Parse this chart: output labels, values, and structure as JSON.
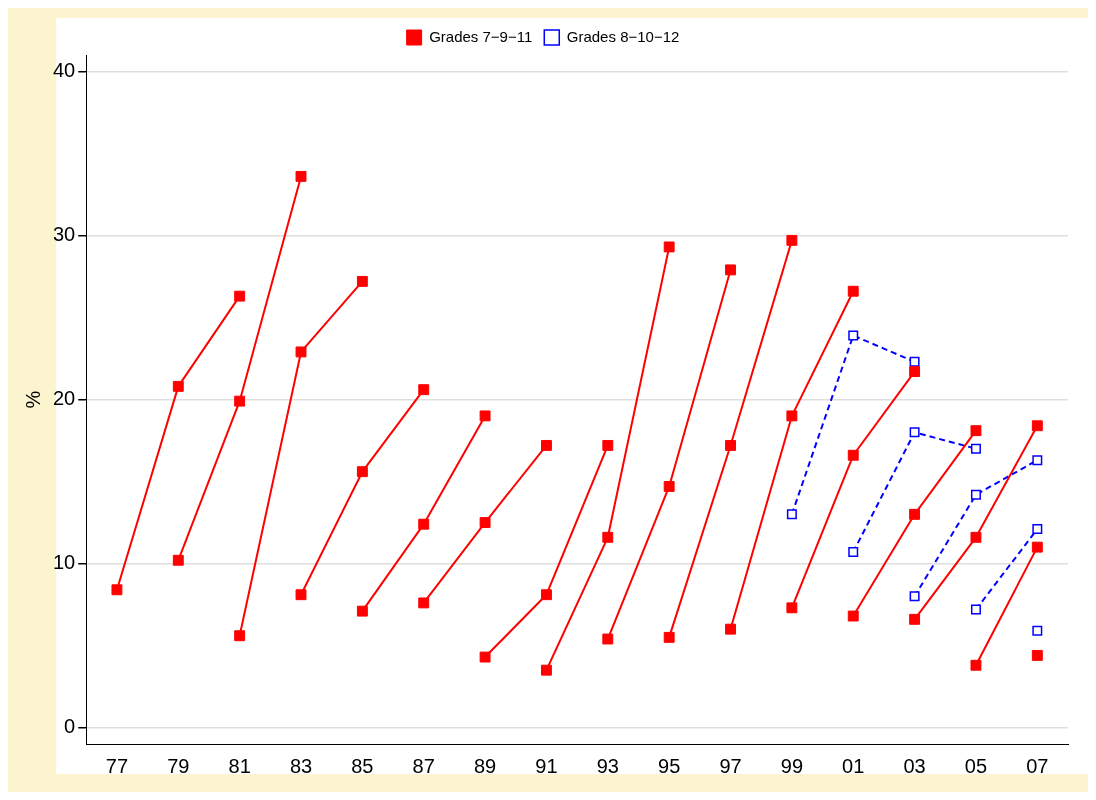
{
  "chart_data": {
    "type": "line",
    "ylabel": "%",
    "categories": [
      "77",
      "79",
      "81",
      "83",
      "85",
      "87",
      "89",
      "91",
      "93",
      "95",
      "97",
      "99",
      "01",
      "03",
      "05",
      "07"
    ],
    "ylim": [
      -1,
      41
    ],
    "yticks": [
      0,
      10,
      20,
      30,
      40
    ],
    "grid": "y",
    "legend": "top",
    "marker": "square",
    "series": [
      {
        "name": "Grades 7−9−11",
        "color": "#ff0000",
        "line_style": "solid",
        "values": [
          8.4,
          20.8,
          26.3,
          null,
          null,
          null,
          null,
          null,
          null,
          null,
          null,
          null,
          null,
          null,
          null,
          null
        ]
      },
      {
        "color": "#ff0000",
        "line_style": "solid",
        "values": [
          null,
          10.2,
          19.9,
          33.6,
          null,
          null,
          null,
          null,
          null,
          null,
          null,
          null,
          null,
          null,
          null,
          null
        ]
      },
      {
        "color": "#ff0000",
        "line_style": "solid",
        "values": [
          null,
          null,
          5.6,
          22.9,
          27.2,
          null,
          null,
          null,
          null,
          null,
          null,
          null,
          null,
          null,
          null,
          null
        ]
      },
      {
        "color": "#ff0000",
        "line_style": "solid",
        "values": [
          null,
          null,
          null,
          8.1,
          15.6,
          20.6,
          null,
          null,
          null,
          null,
          null,
          null,
          null,
          null,
          null,
          null
        ]
      },
      {
        "color": "#ff0000",
        "line_style": "solid",
        "values": [
          null,
          null,
          null,
          null,
          7.1,
          12.4,
          19.0,
          null,
          null,
          null,
          null,
          null,
          null,
          null,
          null,
          null
        ]
      },
      {
        "color": "#ff0000",
        "line_style": "solid",
        "values": [
          null,
          null,
          null,
          null,
          null,
          7.6,
          12.5,
          17.2,
          null,
          null,
          null,
          null,
          null,
          null,
          null,
          null
        ]
      },
      {
        "color": "#ff0000",
        "line_style": "solid",
        "values": [
          null,
          null,
          null,
          null,
          null,
          null,
          4.3,
          8.1,
          17.2,
          null,
          null,
          null,
          null,
          null,
          null,
          null
        ]
      },
      {
        "color": "#ff0000",
        "line_style": "solid",
        "values": [
          null,
          null,
          null,
          null,
          null,
          null,
          null,
          3.5,
          11.6,
          29.3,
          null,
          null,
          null,
          null,
          null,
          null
        ]
      },
      {
        "color": "#ff0000",
        "line_style": "solid",
        "values": [
          null,
          null,
          null,
          null,
          null,
          null,
          null,
          null,
          5.4,
          14.7,
          27.9,
          null,
          null,
          null,
          null,
          null
        ]
      },
      {
        "color": "#ff0000",
        "line_style": "solid",
        "values": [
          null,
          null,
          null,
          null,
          null,
          null,
          null,
          null,
          null,
          5.5,
          17.2,
          29.7,
          null,
          null,
          null,
          null
        ]
      },
      {
        "color": "#ff0000",
        "line_style": "solid",
        "values": [
          null,
          null,
          null,
          null,
          null,
          null,
          null,
          null,
          null,
          null,
          6.0,
          19.0,
          26.6,
          null,
          null,
          null
        ]
      },
      {
        "color": "#ff0000",
        "line_style": "solid",
        "values": [
          null,
          null,
          null,
          null,
          null,
          null,
          null,
          null,
          null,
          null,
          null,
          7.3,
          16.6,
          21.7,
          null,
          null
        ]
      },
      {
        "color": "#ff0000",
        "line_style": "solid",
        "values": [
          null,
          null,
          null,
          null,
          null,
          null,
          null,
          null,
          null,
          null,
          null,
          null,
          6.8,
          13.0,
          18.1,
          null
        ]
      },
      {
        "color": "#ff0000",
        "line_style": "solid",
        "values": [
          null,
          null,
          null,
          null,
          null,
          null,
          null,
          null,
          null,
          null,
          null,
          null,
          null,
          6.6,
          11.6,
          18.4
        ]
      },
      {
        "color": "#ff0000",
        "line_style": "solid",
        "values": [
          null,
          null,
          null,
          null,
          null,
          null,
          null,
          null,
          null,
          null,
          null,
          null,
          null,
          null,
          3.8,
          11.0
        ]
      },
      {
        "color": "#ff0000",
        "line_style": "solid",
        "values": [
          null,
          null,
          null,
          null,
          null,
          null,
          null,
          null,
          null,
          null,
          null,
          null,
          null,
          null,
          null,
          4.4
        ]
      },
      {
        "name": "Grades 8−10−12",
        "color": "#0000ff",
        "line_style": "dashed",
        "values": [
          null,
          null,
          null,
          null,
          null,
          null,
          null,
          null,
          null,
          null,
          null,
          13.0,
          23.9,
          22.3,
          null,
          null
        ]
      },
      {
        "color": "#0000ff",
        "line_style": "dashed",
        "values": [
          null,
          null,
          null,
          null,
          null,
          null,
          null,
          null,
          null,
          null,
          null,
          null,
          10.7,
          18.0,
          17.0,
          null
        ]
      },
      {
        "color": "#0000ff",
        "line_style": "dashed",
        "values": [
          null,
          null,
          null,
          null,
          null,
          null,
          null,
          null,
          null,
          null,
          null,
          null,
          null,
          8.0,
          14.2,
          16.3
        ]
      },
      {
        "color": "#0000ff",
        "line_style": "dashed",
        "values": [
          null,
          null,
          null,
          null,
          null,
          null,
          null,
          null,
          null,
          null,
          null,
          null,
          null,
          null,
          7.2,
          12.1
        ]
      },
      {
        "color": "#0000ff",
        "line_style": "dashed",
        "values": [
          null,
          null,
          null,
          null,
          null,
          null,
          null,
          null,
          null,
          null,
          null,
          null,
          null,
          null,
          null,
          5.9
        ]
      }
    ]
  }
}
